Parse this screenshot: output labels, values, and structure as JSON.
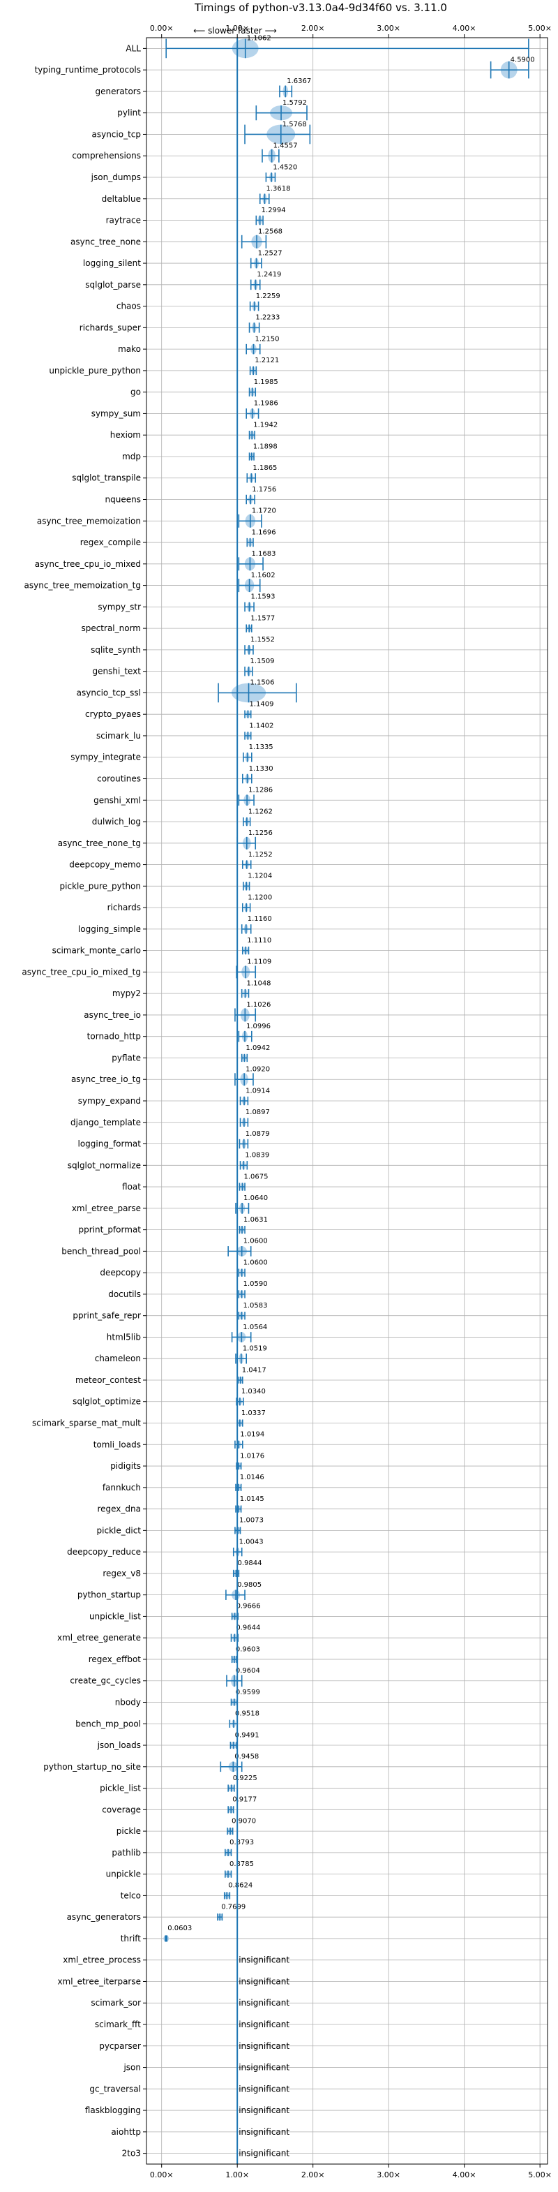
{
  "chart_data": {
    "type": "violin",
    "title": "Timings of python-v3.13.0a4-9d34f60 vs. 3.11.0",
    "subtitle": "⟵ slower   faster ⟶",
    "xlim": [
      -0.2,
      5.1
    ],
    "x_ticks": [
      0,
      1,
      2,
      3,
      4,
      5
    ],
    "x_tick_labels": [
      "0.00×",
      "1.00×",
      "2.00×",
      "3.00×",
      "4.00×",
      "5.00×"
    ],
    "grid": true,
    "reference_line": 1.0,
    "colors": {
      "accent": "#1f77b4",
      "violin": "#a9cce8",
      "grid": "#b0b0b0"
    },
    "series": [
      {
        "name": "ALL",
        "value": 1.1062,
        "label": "1.1062",
        "low": 0.06,
        "high": 4.85,
        "spread": 0.2
      },
      {
        "name": "typing_runtime_protocols",
        "value": 4.59,
        "label": "4.5900",
        "low": 4.35,
        "high": 4.85,
        "spread": 0.15
      },
      {
        "name": "generators",
        "value": 1.6367,
        "label": "1.6367",
        "low": 1.56,
        "high": 1.72,
        "spread": 0.08
      },
      {
        "name": "pylint",
        "value": 1.5792,
        "label": "1.5792",
        "low": 1.25,
        "high": 1.92,
        "spread": 0.12
      },
      {
        "name": "asyncio_tcp",
        "value": 1.5768,
        "label": "1.5768",
        "low": 1.1,
        "high": 1.96,
        "spread": 0.3
      },
      {
        "name": "comprehensions",
        "value": 1.4557,
        "label": "1.4557",
        "low": 1.33,
        "high": 1.55,
        "spread": 0.1
      },
      {
        "name": "json_dumps",
        "value": 1.452,
        "label": "1.4520",
        "low": 1.38,
        "high": 1.5,
        "spread": 0.05
      },
      {
        "name": "deltablue",
        "value": 1.3618,
        "label": "1.3618",
        "low": 1.3,
        "high": 1.42,
        "spread": 0.06
      },
      {
        "name": "raytrace",
        "value": 1.2994,
        "label": "1.2994",
        "low": 1.25,
        "high": 1.34,
        "spread": 0.05
      },
      {
        "name": "async_tree_none",
        "value": 1.2568,
        "label": "1.2568",
        "low": 1.06,
        "high": 1.38,
        "spread": 0.1
      },
      {
        "name": "logging_silent",
        "value": 1.2527,
        "label": "1.2527",
        "low": 1.18,
        "high": 1.32,
        "spread": 0.06
      },
      {
        "name": "sqlglot_parse",
        "value": 1.2419,
        "label": "1.2419",
        "low": 1.18,
        "high": 1.3,
        "spread": 0.06
      },
      {
        "name": "chaos",
        "value": 1.2259,
        "label": "1.2259",
        "low": 1.17,
        "high": 1.28,
        "spread": 0.05
      },
      {
        "name": "richards_super",
        "value": 1.2233,
        "label": "1.2233",
        "low": 1.16,
        "high": 1.29,
        "spread": 0.06
      },
      {
        "name": "mako",
        "value": 1.215,
        "label": "1.2150",
        "low": 1.12,
        "high": 1.3,
        "spread": 0.06
      },
      {
        "name": "unpickle_pure_python",
        "value": 1.2121,
        "label": "1.2121",
        "low": 1.17,
        "high": 1.25,
        "spread": 0.04
      },
      {
        "name": "go",
        "value": 1.1985,
        "label": "1.1985",
        "low": 1.16,
        "high": 1.24,
        "spread": 0.04
      },
      {
        "name": "sympy_sum",
        "value": 1.1986,
        "label": "1.1986",
        "low": 1.12,
        "high": 1.28,
        "spread": 0.06
      },
      {
        "name": "hexiom",
        "value": 1.1942,
        "label": "1.1942",
        "low": 1.16,
        "high": 1.23,
        "spread": 0.04
      },
      {
        "name": "mdp",
        "value": 1.1898,
        "label": "1.1898",
        "low": 1.16,
        "high": 1.22,
        "spread": 0.03
      },
      {
        "name": "sqlglot_transpile",
        "value": 1.1865,
        "label": "1.1865",
        "low": 1.13,
        "high": 1.24,
        "spread": 0.05
      },
      {
        "name": "nqueens",
        "value": 1.1756,
        "label": "1.1756",
        "low": 1.12,
        "high": 1.23,
        "spread": 0.05
      },
      {
        "name": "async_tree_memoization",
        "value": 1.172,
        "label": "1.1720",
        "low": 1.02,
        "high": 1.32,
        "spread": 0.1
      },
      {
        "name": "regex_compile",
        "value": 1.1696,
        "label": "1.1696",
        "low": 1.13,
        "high": 1.21,
        "spread": 0.04
      },
      {
        "name": "async_tree_cpu_io_mixed",
        "value": 1.1683,
        "label": "1.1683",
        "low": 1.02,
        "high": 1.34,
        "spread": 0.1
      },
      {
        "name": "async_tree_memoization_tg",
        "value": 1.1602,
        "label": "1.1602",
        "low": 1.02,
        "high": 1.3,
        "spread": 0.1
      },
      {
        "name": "sympy_str",
        "value": 1.1593,
        "label": "1.1593",
        "low": 1.1,
        "high": 1.22,
        "spread": 0.05
      },
      {
        "name": "spectral_norm",
        "value": 1.1577,
        "label": "1.1577",
        "low": 1.12,
        "high": 1.19,
        "spread": 0.03
      },
      {
        "name": "sqlite_synth",
        "value": 1.1552,
        "label": "1.1552",
        "low": 1.1,
        "high": 1.21,
        "spread": 0.05
      },
      {
        "name": "genshi_text",
        "value": 1.1509,
        "label": "1.1509",
        "low": 1.1,
        "high": 1.2,
        "spread": 0.05
      },
      {
        "name": "asyncio_tcp_ssl",
        "value": 1.1506,
        "label": "1.1506",
        "low": 0.75,
        "high": 1.78,
        "spread": 0.35
      },
      {
        "name": "crypto_pyaes",
        "value": 1.1409,
        "label": "1.1409",
        "low": 1.1,
        "high": 1.18,
        "spread": 0.03
      },
      {
        "name": "scimark_lu",
        "value": 1.1402,
        "label": "1.1402",
        "low": 1.1,
        "high": 1.18,
        "spread": 0.03
      },
      {
        "name": "sympy_integrate",
        "value": 1.1335,
        "label": "1.1335",
        "low": 1.08,
        "high": 1.19,
        "spread": 0.05
      },
      {
        "name": "coroutines",
        "value": 1.133,
        "label": "1.1330",
        "low": 1.07,
        "high": 1.19,
        "spread": 0.05
      },
      {
        "name": "genshi_xml",
        "value": 1.1286,
        "label": "1.1286",
        "low": 1.02,
        "high": 1.22,
        "spread": 0.07
      },
      {
        "name": "dulwich_log",
        "value": 1.1262,
        "label": "1.1262",
        "low": 1.08,
        "high": 1.17,
        "spread": 0.04
      },
      {
        "name": "async_tree_none_tg",
        "value": 1.1256,
        "label": "1.1256",
        "low": 1.0,
        "high": 1.24,
        "spread": 0.09
      },
      {
        "name": "deepcopy_memo",
        "value": 1.1252,
        "label": "1.1252",
        "low": 1.07,
        "high": 1.18,
        "spread": 0.04
      },
      {
        "name": "pickle_pure_python",
        "value": 1.1204,
        "label": "1.1204",
        "low": 1.08,
        "high": 1.16,
        "spread": 0.04
      },
      {
        "name": "richards",
        "value": 1.12,
        "label": "1.1200",
        "low": 1.07,
        "high": 1.17,
        "spread": 0.04
      },
      {
        "name": "logging_simple",
        "value": 1.116,
        "label": "1.1160",
        "low": 1.06,
        "high": 1.18,
        "spread": 0.05
      },
      {
        "name": "scimark_monte_carlo",
        "value": 1.111,
        "label": "1.1110",
        "low": 1.07,
        "high": 1.15,
        "spread": 0.03
      },
      {
        "name": "async_tree_cpu_io_mixed_tg",
        "value": 1.1109,
        "label": "1.1109",
        "low": 0.99,
        "high": 1.24,
        "spread": 0.09
      },
      {
        "name": "mypy2",
        "value": 1.1048,
        "label": "1.1048",
        "low": 1.06,
        "high": 1.15,
        "spread": 0.04
      },
      {
        "name": "async_tree_io",
        "value": 1.1026,
        "label": "1.1026",
        "low": 0.97,
        "high": 1.24,
        "spread": 0.1
      },
      {
        "name": "tornado_http",
        "value": 1.0996,
        "label": "1.0996",
        "low": 1.02,
        "high": 1.19,
        "spread": 0.07
      },
      {
        "name": "pyflate",
        "value": 1.0942,
        "label": "1.0942",
        "low": 1.06,
        "high": 1.13,
        "spread": 0.03
      },
      {
        "name": "async_tree_io_tg",
        "value": 1.092,
        "label": "1.0920",
        "low": 0.97,
        "high": 1.21,
        "spread": 0.09
      },
      {
        "name": "sympy_expand",
        "value": 1.0914,
        "label": "1.0914",
        "low": 1.04,
        "high": 1.14,
        "spread": 0.04
      },
      {
        "name": "django_template",
        "value": 1.0897,
        "label": "1.0897",
        "low": 1.04,
        "high": 1.14,
        "spread": 0.04
      },
      {
        "name": "logging_format",
        "value": 1.0879,
        "label": "1.0879",
        "low": 1.03,
        "high": 1.14,
        "spread": 0.05
      },
      {
        "name": "sqlglot_normalize",
        "value": 1.0839,
        "label": "1.0839",
        "low": 1.04,
        "high": 1.13,
        "spread": 0.04
      },
      {
        "name": "float",
        "value": 1.0675,
        "label": "1.0675",
        "low": 1.03,
        "high": 1.1,
        "spread": 0.03
      },
      {
        "name": "xml_etree_parse",
        "value": 1.064,
        "label": "1.0640",
        "low": 0.98,
        "high": 1.15,
        "spread": 0.07
      },
      {
        "name": "pprint_pformat",
        "value": 1.0631,
        "label": "1.0631",
        "low": 1.03,
        "high": 1.1,
        "spread": 0.03
      },
      {
        "name": "bench_thread_pool",
        "value": 1.06,
        "label": "1.0600",
        "low": 0.88,
        "high": 1.18,
        "spread": 0.06
      },
      {
        "name": "deepcopy",
        "value": 1.06,
        "label": "1.0600",
        "low": 1.02,
        "high": 1.1,
        "spread": 0.03
      },
      {
        "name": "docutils",
        "value": 1.059,
        "label": "1.0590",
        "low": 1.02,
        "high": 1.1,
        "spread": 0.03
      },
      {
        "name": "pprint_safe_repr",
        "value": 1.0583,
        "label": "1.0583",
        "low": 1.02,
        "high": 1.1,
        "spread": 0.03
      },
      {
        "name": "html5lib",
        "value": 1.0564,
        "label": "1.0564",
        "low": 0.93,
        "high": 1.18,
        "spread": 0.06
      },
      {
        "name": "chameleon",
        "value": 1.0519,
        "label": "1.0519",
        "low": 0.98,
        "high": 1.12,
        "spread": 0.06
      },
      {
        "name": "meteor_contest",
        "value": 1.0417,
        "label": "1.0417",
        "low": 1.01,
        "high": 1.07,
        "spread": 0.02
      },
      {
        "name": "sqlglot_optimize",
        "value": 1.034,
        "label": "1.0340",
        "low": 0.99,
        "high": 1.08,
        "spread": 0.03
      },
      {
        "name": "scimark_sparse_mat_mult",
        "value": 1.0337,
        "label": "1.0337",
        "low": 1.0,
        "high": 1.07,
        "spread": 0.02
      },
      {
        "name": "tomli_loads",
        "value": 1.0194,
        "label": "1.0194",
        "low": 0.97,
        "high": 1.07,
        "spread": 0.03
      },
      {
        "name": "pidigits",
        "value": 1.0176,
        "label": "1.0176",
        "low": 0.99,
        "high": 1.05,
        "spread": 0.02
      },
      {
        "name": "fannkuch",
        "value": 1.0146,
        "label": "1.0146",
        "low": 0.98,
        "high": 1.05,
        "spread": 0.02
      },
      {
        "name": "regex_dna",
        "value": 1.0145,
        "label": "1.0145",
        "low": 0.98,
        "high": 1.05,
        "spread": 0.02
      },
      {
        "name": "pickle_dict",
        "value": 1.0073,
        "label": "1.0073",
        "low": 0.97,
        "high": 1.04,
        "spread": 0.02
      },
      {
        "name": "deepcopy_reduce",
        "value": 1.0043,
        "label": "1.0043",
        "low": 0.95,
        "high": 1.06,
        "spread": 0.04
      },
      {
        "name": "regex_v8",
        "value": 0.9844,
        "label": "0.9844",
        "low": 0.95,
        "high": 1.02,
        "spread": 0.02
      },
      {
        "name": "python_startup",
        "value": 0.9805,
        "label": "0.9805",
        "low": 0.85,
        "high": 1.1,
        "spread": 0.06
      },
      {
        "name": "unpickle_list",
        "value": 0.9666,
        "label": "0.9666",
        "low": 0.93,
        "high": 1.01,
        "spread": 0.02
      },
      {
        "name": "xml_etree_generate",
        "value": 0.9644,
        "label": "0.9644",
        "low": 0.92,
        "high": 1.01,
        "spread": 0.03
      },
      {
        "name": "regex_effbot",
        "value": 0.9603,
        "label": "0.9603",
        "low": 0.93,
        "high": 0.99,
        "spread": 0.02
      },
      {
        "name": "create_gc_cycles",
        "value": 0.9604,
        "label": "0.9604",
        "low": 0.86,
        "high": 1.06,
        "spread": 0.08
      },
      {
        "name": "nbody",
        "value": 0.9599,
        "label": "0.9599",
        "low": 0.92,
        "high": 1.0,
        "spread": 0.02
      },
      {
        "name": "bench_mp_pool",
        "value": 0.9518,
        "label": "0.9518",
        "low": 0.9,
        "high": 1.0,
        "spread": 0.03
      },
      {
        "name": "json_loads",
        "value": 0.9491,
        "label": "0.9491",
        "low": 0.91,
        "high": 0.99,
        "spread": 0.02
      },
      {
        "name": "python_startup_no_site",
        "value": 0.9458,
        "label": "0.9458",
        "low": 0.78,
        "high": 1.06,
        "spread": 0.06
      },
      {
        "name": "pickle_list",
        "value": 0.9225,
        "label": "0.9225",
        "low": 0.88,
        "high": 0.96,
        "spread": 0.02
      },
      {
        "name": "coverage",
        "value": 0.9177,
        "label": "0.9177",
        "low": 0.88,
        "high": 0.95,
        "spread": 0.02
      },
      {
        "name": "pickle",
        "value": 0.907,
        "label": "0.9070",
        "low": 0.87,
        "high": 0.94,
        "spread": 0.02
      },
      {
        "name": "pathlib",
        "value": 0.8793,
        "label": "0.8793",
        "low": 0.84,
        "high": 0.92,
        "spread": 0.02
      },
      {
        "name": "unpickle",
        "value": 0.8785,
        "label": "0.8785",
        "low": 0.84,
        "high": 0.92,
        "spread": 0.02
      },
      {
        "name": "telco",
        "value": 0.8624,
        "label": "0.8624",
        "low": 0.83,
        "high": 0.9,
        "spread": 0.02
      },
      {
        "name": "async_generators",
        "value": 0.7699,
        "label": "0.7699",
        "low": 0.74,
        "high": 0.8,
        "spread": 0.02
      },
      {
        "name": "thrift",
        "value": 0.0603,
        "label": "0.0603",
        "low": 0.05,
        "high": 0.07,
        "spread": 0.01
      },
      {
        "name": "xml_etree_process",
        "value": null,
        "label": "insignificant"
      },
      {
        "name": "xml_etree_iterparse",
        "value": null,
        "label": "insignificant"
      },
      {
        "name": "scimark_sor",
        "value": null,
        "label": "insignificant"
      },
      {
        "name": "scimark_fft",
        "value": null,
        "label": "insignificant"
      },
      {
        "name": "pycparser",
        "value": null,
        "label": "insignificant"
      },
      {
        "name": "json",
        "value": null,
        "label": "insignificant"
      },
      {
        "name": "gc_traversal",
        "value": null,
        "label": "insignificant"
      },
      {
        "name": "flaskblogging",
        "value": null,
        "label": "insignificant"
      },
      {
        "name": "aiohttp",
        "value": null,
        "label": "insignificant"
      },
      {
        "name": "2to3",
        "value": null,
        "label": "insignificant"
      }
    ]
  }
}
